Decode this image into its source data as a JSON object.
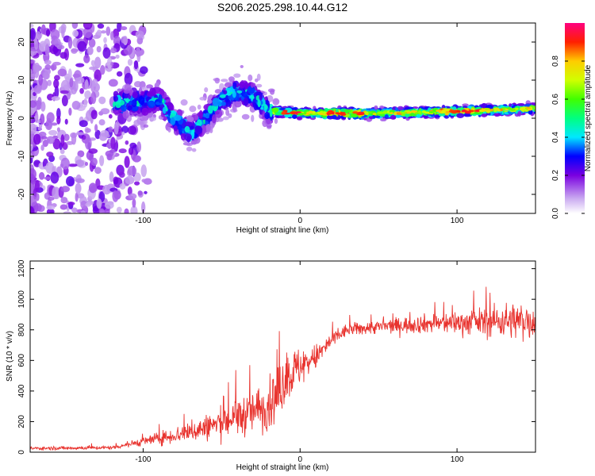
{
  "title": "S206.2025.298.10.44.G12",
  "chart_data": [
    {
      "type": "heatmap",
      "name": "spectrogram",
      "xlabel": "Height of straight line (km)",
      "ylabel": "Frequency (Hz)",
      "xlim": [
        -172,
        150
      ],
      "ylim": [
        -25,
        25
      ],
      "xticks": [
        -100,
        0,
        100
      ],
      "yticks": [
        -20,
        -10,
        0,
        10,
        20
      ],
      "colorbar": {
        "label": "Normalized spectral amplitude",
        "range": [
          0,
          1
        ],
        "ticks": [
          0.0,
          0.2,
          0.4,
          0.6,
          0.8
        ]
      },
      "ridge": [
        {
          "x": -115,
          "y": 4
        },
        {
          "x": -100,
          "y": 4
        },
        {
          "x": -90,
          "y": 5
        },
        {
          "x": -80,
          "y": 0
        },
        {
          "x": -70,
          "y": -4
        },
        {
          "x": -60,
          "y": 0
        },
        {
          "x": -50,
          "y": 5
        },
        {
          "x": -40,
          "y": 7
        },
        {
          "x": -30,
          "y": 6
        },
        {
          "x": -20,
          "y": 2
        },
        {
          "x": -10,
          "y": 1.5
        },
        {
          "x": 0,
          "y": 1.3
        },
        {
          "x": 50,
          "y": 1.3
        },
        {
          "x": 100,
          "y": 1.8
        },
        {
          "x": 150,
          "y": 2.5
        }
      ]
    },
    {
      "type": "line",
      "name": "snr",
      "xlabel": "Height of straight line (km)",
      "ylabel": "SNR (10 * v/v)",
      "xlim": [
        -172,
        150
      ],
      "ylim": [
        0,
        1250
      ],
      "xticks": [
        -100,
        0,
        100
      ],
      "yticks": [
        0,
        200,
        400,
        600,
        800,
        1000,
        1200
      ],
      "color": "#e8332e",
      "envelope": [
        {
          "x": -172,
          "mean": 25,
          "spread": 15
        },
        {
          "x": -120,
          "mean": 30,
          "spread": 15
        },
        {
          "x": -105,
          "mean": 60,
          "spread": 30
        },
        {
          "x": -80,
          "mean": 110,
          "spread": 70
        },
        {
          "x": -60,
          "mean": 160,
          "spread": 110
        },
        {
          "x": -40,
          "mean": 230,
          "spread": 170
        },
        {
          "x": -25,
          "mean": 280,
          "spread": 190
        },
        {
          "x": -15,
          "mean": 350,
          "spread": 230
        },
        {
          "x": -10,
          "mean": 480,
          "spread": 240
        },
        {
          "x": 0,
          "mean": 560,
          "spread": 170
        },
        {
          "x": 10,
          "mean": 620,
          "spread": 110
        },
        {
          "x": 20,
          "mean": 730,
          "spread": 70
        },
        {
          "x": 30,
          "mean": 800,
          "spread": 55
        },
        {
          "x": 50,
          "mean": 820,
          "spread": 60
        },
        {
          "x": 80,
          "mean": 840,
          "spread": 80
        },
        {
          "x": 110,
          "mean": 850,
          "spread": 110
        },
        {
          "x": 130,
          "mean": 860,
          "spread": 150
        },
        {
          "x": 150,
          "mean": 860,
          "spread": 170
        }
      ]
    }
  ]
}
